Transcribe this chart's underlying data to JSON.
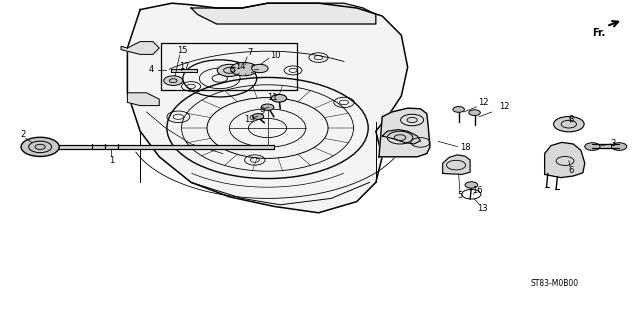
{
  "background_color": "#ffffff",
  "diagram_code": "ST83-M0B00",
  "fr_label": "Fr."
}
